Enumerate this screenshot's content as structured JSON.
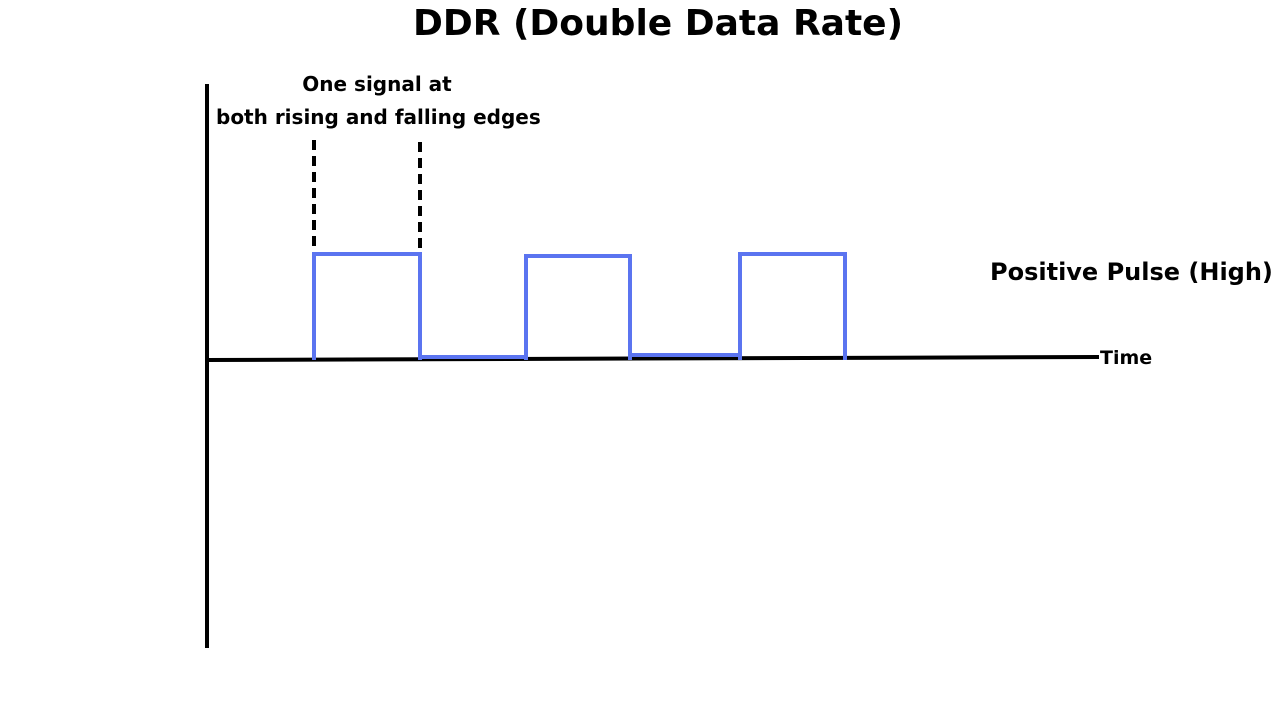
{
  "title": "DDR (Double Data Rate)",
  "annotation": {
    "line1": "One signal at",
    "line2": "both rising and falling edges"
  },
  "pulse_label": "Positive Pulse (High)",
  "time_label": "Time",
  "colors": {
    "signal": "#5b74f0",
    "axis": "#000000",
    "edge_marker": "#000000"
  },
  "waveform": {
    "levels": [
      1,
      0,
      1,
      0,
      1
    ],
    "description_states": [
      "high",
      "low",
      "high",
      "low",
      "high"
    ]
  }
}
